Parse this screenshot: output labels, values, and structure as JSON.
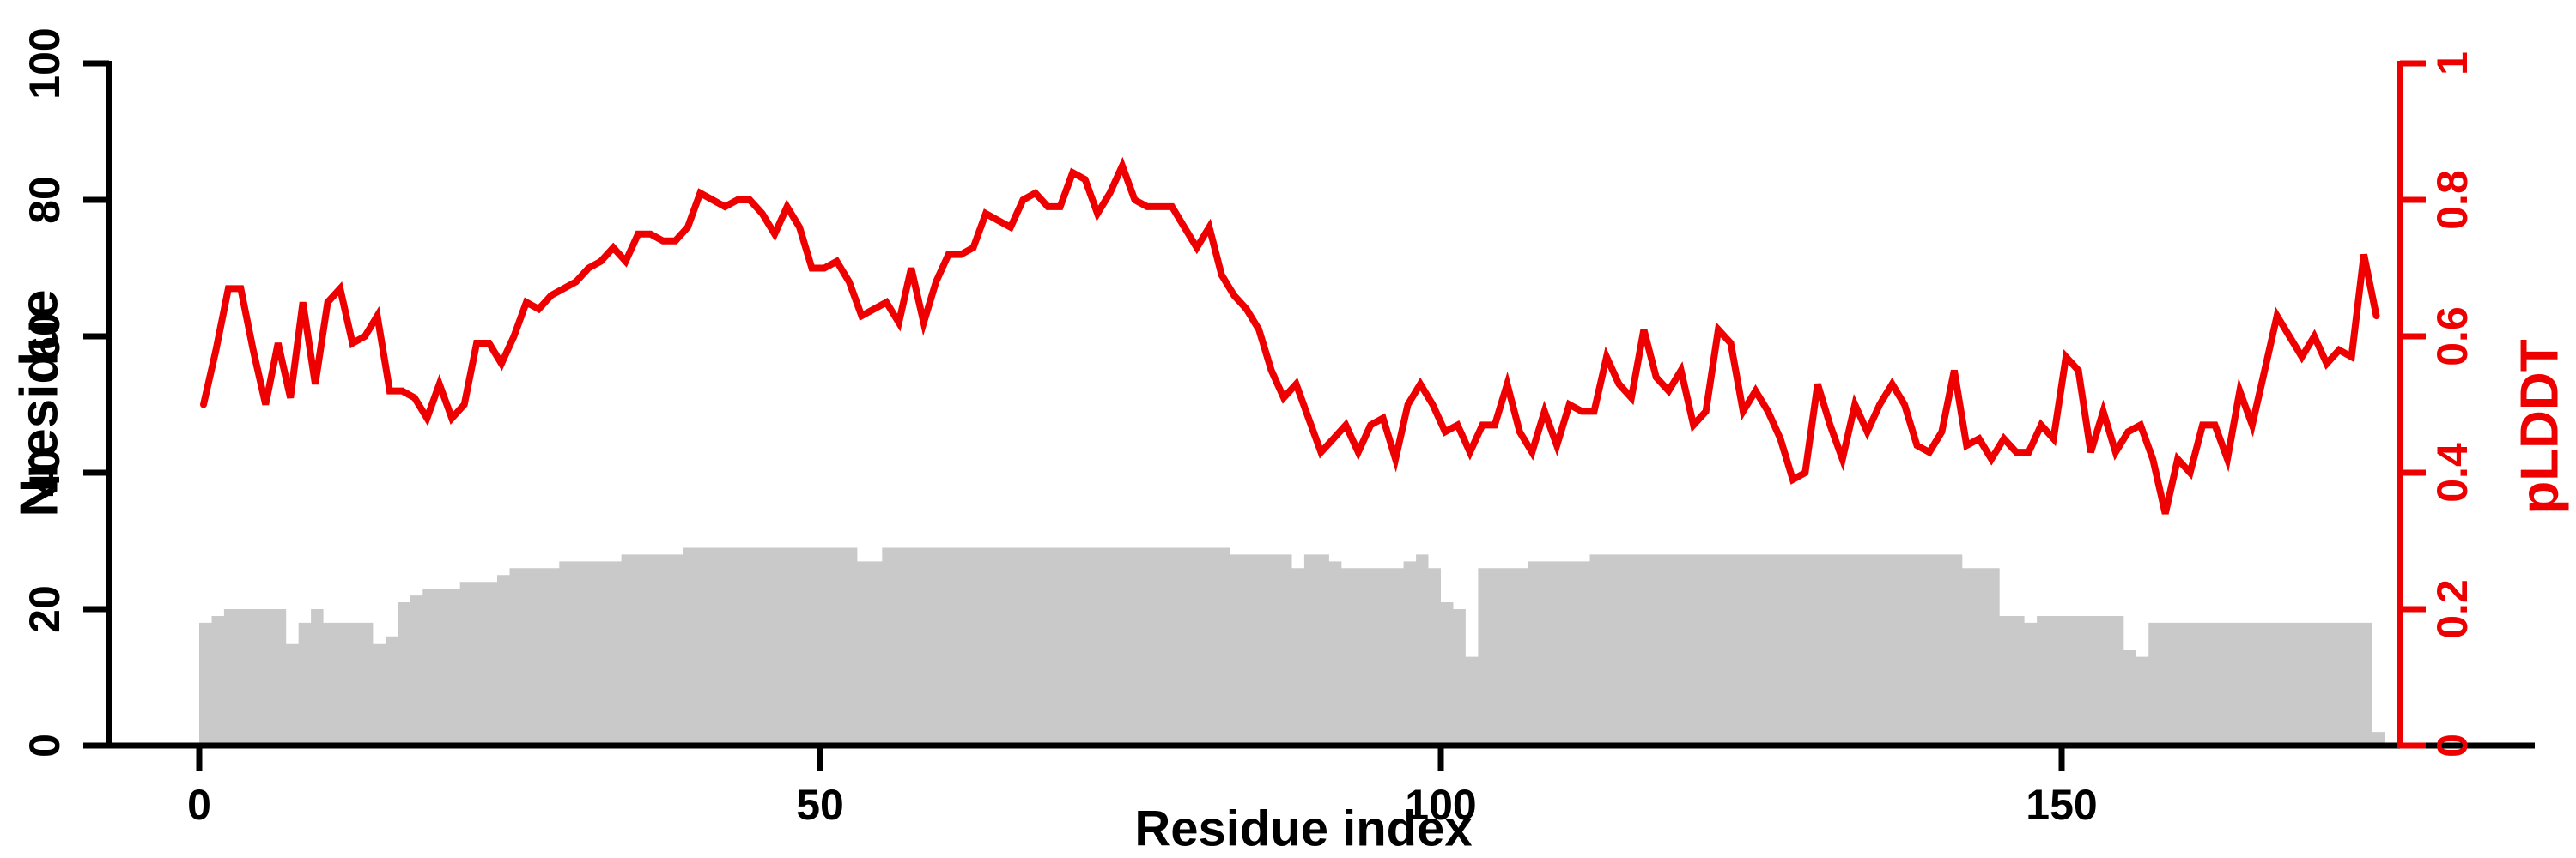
{
  "figure": {
    "x_axis": {
      "label": "Residue index",
      "tick_labels": [
        "0",
        "50",
        "100",
        "150"
      ],
      "tick_values": [
        0,
        50,
        100,
        150
      ]
    },
    "left_axis": {
      "label": "Nresidue",
      "tick_labels": [
        "0",
        "20",
        "40",
        "60",
        "80",
        "100"
      ],
      "tick_values": [
        0,
        20,
        40,
        60,
        80,
        100
      ],
      "range": [
        0,
        100
      ],
      "color": "#000000"
    },
    "right_axis": {
      "label": "pLDDT",
      "tick_labels": [
        "0",
        "0.2",
        "0.4",
        "0.6",
        "0.8",
        "1"
      ],
      "tick_values": [
        0,
        0.2,
        0.4,
        0.6,
        0.8,
        1
      ],
      "range": [
        0,
        1
      ],
      "color": "#EE0000"
    }
  },
  "chart_data": {
    "type": "composite",
    "x_label": "Residue index",
    "x_start": 0,
    "x_end": 175,
    "grid": false,
    "legend": "none",
    "background": "#ffffff",
    "series": [
      {
        "name": "Nresidue",
        "type": "bar",
        "axis": "left",
        "color": "#C9C9C9",
        "ylim": [
          0,
          100
        ],
        "values": [
          18,
          19,
          20,
          20,
          20,
          20,
          20,
          15,
          18,
          20,
          18,
          18,
          18,
          18,
          15,
          16,
          21,
          22,
          23,
          23,
          23,
          24,
          24,
          24,
          25,
          26,
          26,
          26,
          26,
          27,
          27,
          27,
          27,
          27,
          28,
          28,
          28,
          28,
          28,
          29,
          29,
          29,
          29,
          29,
          29,
          29,
          29,
          29,
          29,
          29,
          29,
          29,
          29,
          27,
          27,
          29,
          29,
          29,
          29,
          29,
          29,
          29,
          29,
          29,
          29,
          29,
          29,
          29,
          29,
          29,
          29,
          29,
          29,
          29,
          29,
          29,
          29,
          29,
          29,
          29,
          29,
          29,
          29,
          28,
          28,
          28,
          28,
          28,
          26,
          28,
          28,
          27,
          26,
          26,
          26,
          26,
          26,
          27,
          28,
          26,
          21,
          20,
          13,
          26,
          26,
          26,
          26,
          27,
          27,
          27,
          27,
          27,
          28,
          28,
          28,
          28,
          28,
          28,
          28,
          28,
          28,
          28,
          28,
          28,
          28,
          28,
          28,
          28,
          28,
          28,
          28,
          28,
          28,
          28,
          28,
          28,
          28,
          28,
          28,
          28,
          28,
          28,
          26,
          26,
          26,
          19,
          19,
          18,
          19,
          19,
          19,
          19,
          19,
          19,
          19,
          14,
          13,
          18,
          18,
          18,
          18,
          18,
          18,
          18,
          18,
          18,
          18,
          18,
          18,
          18,
          18,
          18,
          18,
          18,
          18,
          2
        ]
      },
      {
        "name": "pLDDT",
        "type": "line",
        "axis": "right",
        "color": "#EE0000",
        "ylim": [
          0,
          1
        ],
        "values": [
          0.5,
          0.58,
          0.67,
          0.67,
          0.58,
          0.5,
          0.59,
          0.51,
          0.65,
          0.53,
          0.65,
          0.67,
          0.59,
          0.6,
          0.63,
          0.52,
          0.52,
          0.51,
          0.48,
          0.53,
          0.48,
          0.5,
          0.59,
          0.59,
          0.56,
          0.6,
          0.65,
          0.64,
          0.66,
          0.67,
          0.68,
          0.7,
          0.71,
          0.73,
          0.71,
          0.75,
          0.75,
          0.74,
          0.74,
          0.76,
          0.81,
          0.8,
          0.79,
          0.8,
          0.8,
          0.78,
          0.75,
          0.79,
          0.76,
          0.7,
          0.7,
          0.71,
          0.68,
          0.63,
          0.64,
          0.65,
          0.62,
          0.7,
          0.62,
          0.68,
          0.72,
          0.72,
          0.73,
          0.78,
          0.77,
          0.76,
          0.8,
          0.81,
          0.79,
          0.79,
          0.84,
          0.83,
          0.78,
          0.81,
          0.85,
          0.8,
          0.79,
          0.79,
          0.79,
          0.76,
          0.73,
          0.76,
          0.69,
          0.66,
          0.64,
          0.61,
          0.55,
          0.51,
          0.53,
          0.48,
          0.43,
          0.45,
          0.47,
          0.43,
          0.47,
          0.48,
          0.42,
          0.5,
          0.53,
          0.5,
          0.46,
          0.47,
          0.43,
          0.47,
          0.47,
          0.53,
          0.46,
          0.43,
          0.49,
          0.44,
          0.5,
          0.49,
          0.49,
          0.57,
          0.53,
          0.51,
          0.61,
          0.54,
          0.52,
          0.55,
          0.47,
          0.49,
          0.61,
          0.59,
          0.49,
          0.52,
          0.49,
          0.45,
          0.39,
          0.4,
          0.53,
          0.47,
          0.42,
          0.5,
          0.46,
          0.5,
          0.53,
          0.5,
          0.44,
          0.43,
          0.46,
          0.55,
          0.44,
          0.45,
          0.42,
          0.45,
          0.43,
          0.43,
          0.47,
          0.45,
          0.57,
          0.55,
          0.43,
          0.49,
          0.43,
          0.46,
          0.47,
          0.42,
          0.34,
          0.42,
          0.4,
          0.47,
          0.47,
          0.42,
          0.52,
          0.47,
          0.55,
          0.63,
          0.6,
          0.57,
          0.6,
          0.56,
          0.58,
          0.57,
          0.72,
          0.63
        ]
      }
    ]
  }
}
